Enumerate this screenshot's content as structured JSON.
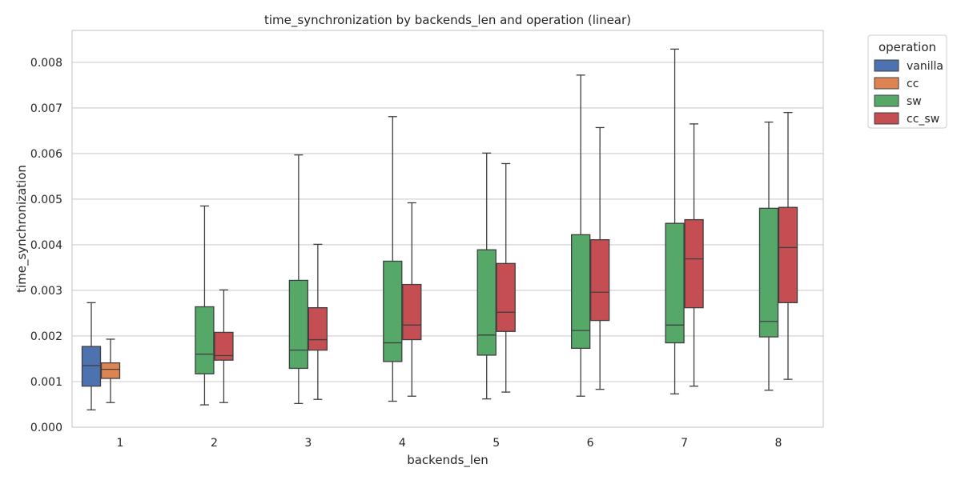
{
  "chart_data": {
    "type": "box",
    "title": "time_synchronization by backends_len and operation (linear)",
    "xlabel": "backends_len",
    "ylabel": "time_synchronization",
    "categories": [
      "1",
      "2",
      "3",
      "4",
      "5",
      "6",
      "7",
      "8"
    ],
    "ylim": [
      0,
      0.0087
    ],
    "yticks": [
      "0.000",
      "0.001",
      "0.002",
      "0.003",
      "0.004",
      "0.005",
      "0.006",
      "0.007",
      "0.008"
    ],
    "grid": "horizontal",
    "legend": {
      "title": "operation",
      "placement": "outside-top-right"
    },
    "colors": {
      "vanilla": "#4c72b0",
      "cc": "#dd8452",
      "sw": "#55a868",
      "cc_sw": "#c44e52"
    },
    "series": [
      {
        "name": "vanilla",
        "boxes": [
          {
            "category": "1",
            "whislo": 0.00038,
            "q1": 0.0009,
            "median": 0.00135,
            "q3": 0.00177,
            "whishi": 0.00273
          }
        ]
      },
      {
        "name": "cc",
        "boxes": [
          {
            "category": "1",
            "whislo": 0.00054,
            "q1": 0.00107,
            "median": 0.00127,
            "q3": 0.00141,
            "whishi": 0.00193
          }
        ]
      },
      {
        "name": "sw",
        "boxes": [
          {
            "category": "2",
            "whislo": 0.00049,
            "q1": 0.00117,
            "median": 0.0016,
            "q3": 0.00264,
            "whishi": 0.00485
          },
          {
            "category": "3",
            "whislo": 0.00052,
            "q1": 0.00129,
            "median": 0.00169,
            "q3": 0.00322,
            "whishi": 0.00597
          },
          {
            "category": "4",
            "whislo": 0.00057,
            "q1": 0.00144,
            "median": 0.00185,
            "q3": 0.00364,
            "whishi": 0.00681
          },
          {
            "category": "5",
            "whislo": 0.00062,
            "q1": 0.00158,
            "median": 0.00202,
            "q3": 0.00389,
            "whishi": 0.00601
          },
          {
            "category": "6",
            "whislo": 0.00068,
            "q1": 0.00173,
            "median": 0.00212,
            "q3": 0.00422,
            "whishi": 0.00772
          },
          {
            "category": "7",
            "whislo": 0.00073,
            "q1": 0.00185,
            "median": 0.00224,
            "q3": 0.00447,
            "whishi": 0.00829
          },
          {
            "category": "8",
            "whislo": 0.00081,
            "q1": 0.00198,
            "median": 0.00232,
            "q3": 0.0048,
            "whishi": 0.00669
          }
        ]
      },
      {
        "name": "cc_sw",
        "boxes": [
          {
            "category": "2",
            "whislo": 0.00054,
            "q1": 0.00147,
            "median": 0.00157,
            "q3": 0.00208,
            "whishi": 0.00301
          },
          {
            "category": "3",
            "whislo": 0.00061,
            "q1": 0.00169,
            "median": 0.00192,
            "q3": 0.00262,
            "whishi": 0.00401
          },
          {
            "category": "4",
            "whislo": 0.00068,
            "q1": 0.00192,
            "median": 0.00224,
            "q3": 0.00313,
            "whishi": 0.00492
          },
          {
            "category": "5",
            "whislo": 0.00077,
            "q1": 0.0021,
            "median": 0.00252,
            "q3": 0.00359,
            "whishi": 0.00578
          },
          {
            "category": "6",
            "whislo": 0.00083,
            "q1": 0.00234,
            "median": 0.00296,
            "q3": 0.00411,
            "whishi": 0.00657
          },
          {
            "category": "7",
            "whislo": 0.0009,
            "q1": 0.00262,
            "median": 0.00369,
            "q3": 0.00455,
            "whishi": 0.00665
          },
          {
            "category": "8",
            "whislo": 0.00105,
            "q1": 0.00273,
            "median": 0.00394,
            "q3": 0.00482,
            "whishi": 0.0069
          }
        ]
      }
    ]
  }
}
